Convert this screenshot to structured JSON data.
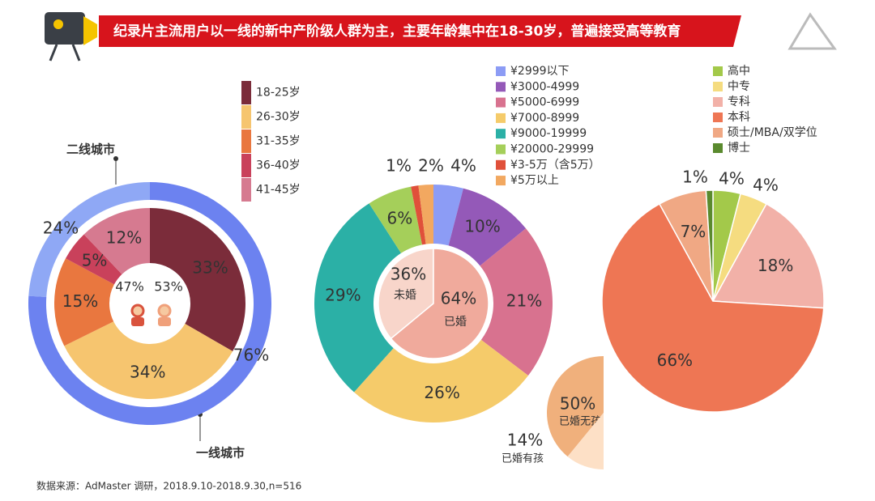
{
  "header": {
    "title": "纪录片主流用户以一线的新中产阶级人群为主，主要年龄集中在18-30岁，普遍接受高等教育"
  },
  "source": "数据来源：AdMaster 调研，2018.9.10-2018.9.30,n=516",
  "chart_data": [
    {
      "type": "donut",
      "series": [
        {
          "categories": [
            "二线城市",
            "一线城市"
          ],
          "values": [
            24,
            76
          ],
          "value_labels": [
            "24%",
            "76%"
          ],
          "colors": [
            "#8fa8f5",
            "#6c82f0"
          ]
        },
        {
          "categories": [
            "18-25岁",
            "26-30岁",
            "31-35岁",
            "36-40岁",
            "41-45岁"
          ],
          "values": [
            33,
            34,
            15,
            5,
            12
          ],
          "value_labels": [
            "33%",
            "34%",
            "15%",
            "5%",
            "12%"
          ],
          "colors": [
            "#7b2c3a",
            "#f6c56f",
            "#e9773f",
            "#c9415b",
            "#d67a90"
          ]
        },
        {
          "values": [
            47,
            53
          ],
          "value_labels": [
            "47%",
            "53%"
          ],
          "colors": [
            "#d9533d",
            "#f0a07a"
          ]
        }
      ]
    },
    {
      "type": "donut",
      "series": [
        {
          "categories": [
            "¥2999以下",
            "¥3000-4999",
            "¥5000-6999",
            "¥7000-8999",
            "¥9000-19999",
            "¥20000-29999",
            "¥3-5万（含5万）",
            "¥5万以上"
          ],
          "values": [
            4,
            10,
            21,
            26,
            29,
            6,
            1,
            2
          ],
          "value_labels": [
            "4%",
            "10%",
            "21%",
            "26%",
            "29%",
            "6%",
            "1%",
            "2%"
          ],
          "colors": [
            "#8c9cf5",
            "#9459b8",
            "#d8728f",
            "#f5cb6a",
            "#2bb0a6",
            "#a5cf5a",
            "#e0503a",
            "#f2a860"
          ]
        },
        {
          "categories": [
            "未婚",
            "已婚"
          ],
          "values": [
            36,
            64
          ],
          "value_labels": [
            "36%",
            "64%"
          ],
          "colors": [
            "#f8d5ca",
            "#f0aa9c"
          ]
        },
        {
          "categories": [
            "已婚无孩",
            "已婚有孩"
          ],
          "values": [
            50,
            14
          ],
          "value_labels": [
            "50%",
            "14%"
          ],
          "colors": [
            "#f0b07c",
            "#fde0c6"
          ]
        }
      ]
    },
    {
      "type": "pie",
      "series": [
        {
          "categories": [
            "高中",
            "中专",
            "专科",
            "本科",
            "硕士/MBA/双学位",
            "博士"
          ],
          "values": [
            4,
            4,
            18,
            66,
            7,
            1
          ],
          "value_labels": [
            "4%",
            "4%",
            "18%",
            "66%",
            "7%",
            "1%"
          ],
          "colors": [
            "#a3c94a",
            "#f5dc80",
            "#f2b1a8",
            "#ee7654",
            "#f0a884",
            "#5a8a2e"
          ]
        }
      ]
    }
  ]
}
